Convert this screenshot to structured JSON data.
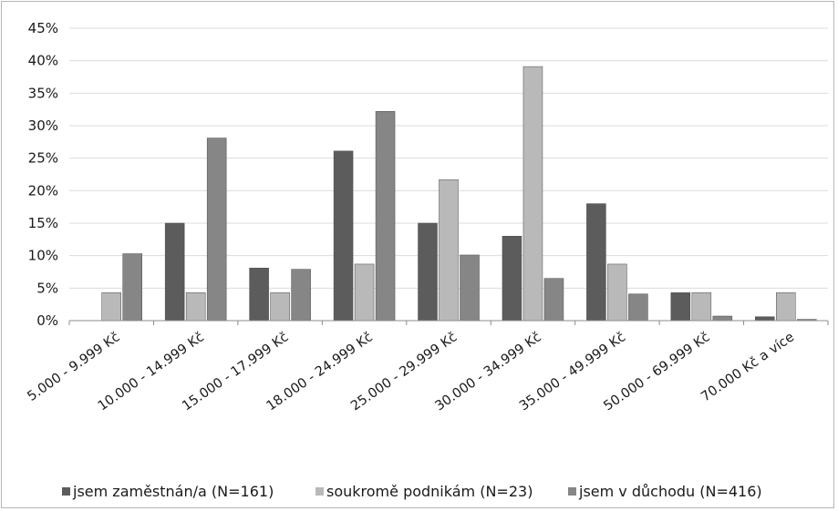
{
  "chart_data": {
    "type": "bar",
    "categories": [
      "5.000 - 9.999 Kč",
      "10.000 - 14.999 Kč",
      "15.000 - 17.999 Kč",
      "18.000 - 24.999 Kč",
      "25.000 - 29.999 Kč",
      "30.000 - 34.999 Kč",
      "35.000 - 49.999 Kč",
      "50.000 - 69.999 Kč",
      "70.000 Kč a více"
    ],
    "series": [
      {
        "name": "jsem zaměstnán/a (N=161)",
        "color": "#5c5c5c",
        "values": [
          0,
          15.0,
          8.1,
          26.1,
          15.0,
          13.0,
          18.0,
          4.3,
          0.6
        ]
      },
      {
        "name": "soukromě podnikám (N=23)",
        "color": "#b9b9b9",
        "values": [
          4.3,
          4.3,
          4.3,
          8.7,
          21.7,
          39.1,
          8.7,
          4.3,
          4.3
        ]
      },
      {
        "name": "jsem v důchodu (N=416)",
        "color": "#868686",
        "values": [
          10.3,
          28.1,
          7.9,
          32.2,
          10.1,
          6.5,
          4.1,
          0.7,
          0.2
        ]
      }
    ],
    "y_ticks": [
      "0%",
      "5%",
      "10%",
      "15%",
      "20%",
      "25%",
      "30%",
      "35%",
      "40%",
      "45%"
    ],
    "ylim": [
      0,
      45
    ],
    "grid": true,
    "legend_position": "bottom",
    "title": "",
    "xlabel": "",
    "ylabel": ""
  }
}
